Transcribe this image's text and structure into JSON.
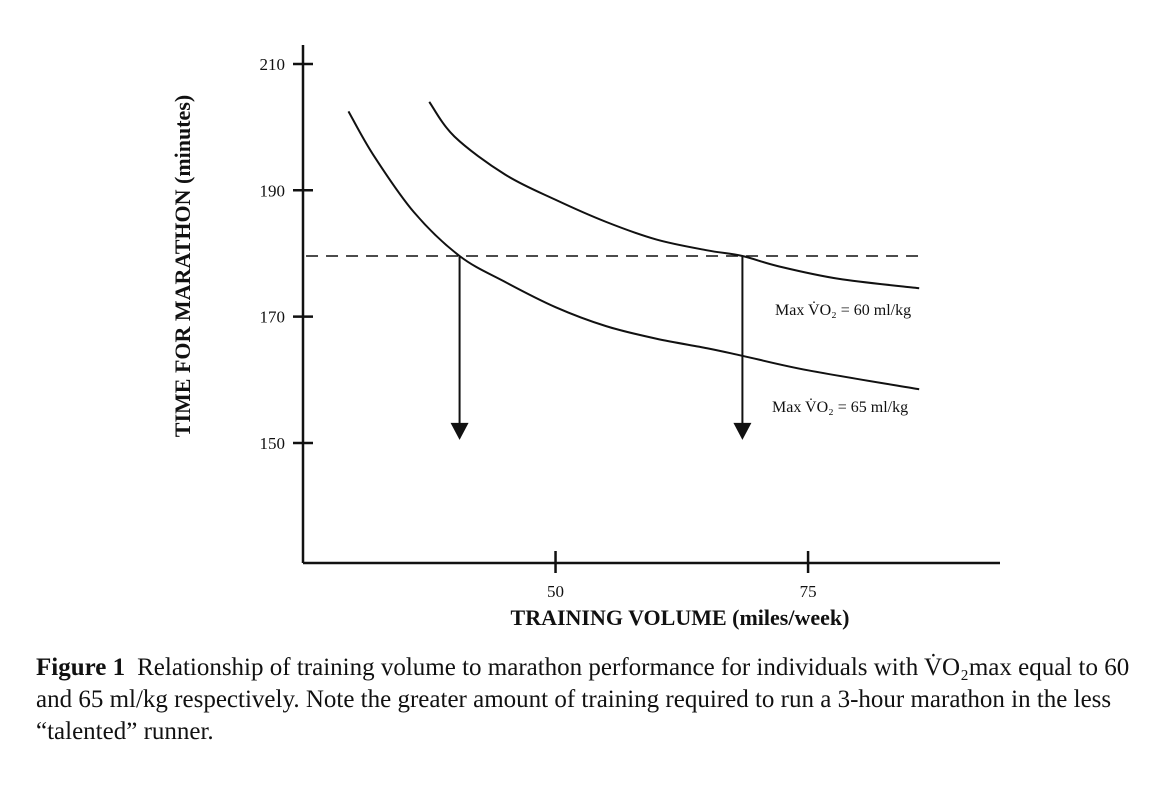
{
  "chart_data": {
    "type": "line",
    "xlabel": "TRAINING VOLUME (miles/week)",
    "ylabel": "TIME FOR MARATHON (minutes)",
    "x_ticks": [
      50,
      75
    ],
    "y_ticks": [
      150,
      170,
      190,
      210
    ],
    "xlim": [
      25,
      94
    ],
    "ylim": [
      131,
      213
    ],
    "grid": false,
    "series": [
      {
        "name": "Max V̇O₂ = 60 ml/kg",
        "x": [
          37.5,
          40,
          45,
          50,
          55,
          60,
          65,
          68.5,
          72,
          78,
          86
        ],
        "y": [
          204,
          198.5,
          192.5,
          188.5,
          185,
          182.2,
          180.5,
          179.6,
          178,
          176,
          174.5
        ]
      },
      {
        "name": "Max V̇O₂ = 65 ml/kg",
        "x": [
          29.5,
          32,
          36,
          40.5,
          45,
          50,
          55,
          60,
          65,
          68.5,
          75,
          86
        ],
        "y": [
          202.5,
          195.5,
          186.5,
          179.6,
          175.5,
          171.5,
          168.5,
          166.5,
          165,
          163.8,
          161.5,
          158.5
        ]
      }
    ],
    "annotations": {
      "threshold_y": 179.6,
      "threshold_x": [
        25.3,
        86
      ],
      "arrows_x": [
        40.5,
        68.5
      ],
      "arrow_tip_y": 150.5
    }
  },
  "caption": {
    "label": "Figure 1",
    "text": "Relationship of training volume to marathon performance for individuals with V̇O₂max equal to 60 and 65 ml/kg respectively. Note the greater amount of training required to run a 3-hour marathon in the less “talented” runner."
  }
}
